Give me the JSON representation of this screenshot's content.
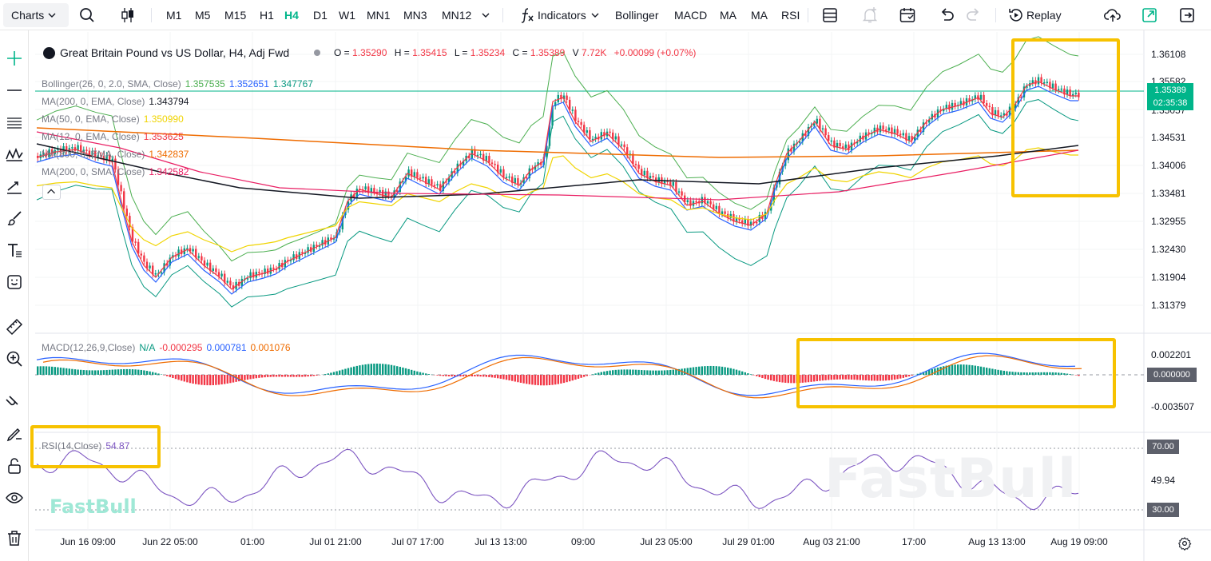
{
  "toolbar": {
    "charts_label": "Charts",
    "timeframes": [
      "M1",
      "M5",
      "M15",
      "H1",
      "H4",
      "D1",
      "W1",
      "MN1",
      "MN3",
      "MN12"
    ],
    "active_timeframe": "H4",
    "indicators_label": "Indicators",
    "studies": [
      "Bollinger",
      "MACD",
      "MA",
      "MA",
      "RSI"
    ],
    "replay_label": "Replay"
  },
  "symbol": {
    "title": "Great Britain Pound vs US Dollar, H4, Adj Fwd",
    "open_label": "O",
    "open": "1.35290",
    "high_label": "H",
    "high": "1.35415",
    "low_label": "L",
    "low": "1.35234",
    "close_label": "C",
    "close": "1.35389",
    "volume_label": "V",
    "volume": "7.72K",
    "change": "+0.00099 (+0.07%)"
  },
  "legend": {
    "bollinger": {
      "name": "Bollinger(26, 0, 2.0, SMA, Close)",
      "v1": "1.357535",
      "v2": "1.352651",
      "v3": "1.347767"
    },
    "ma200ema": {
      "name": "MA(200, 0, EMA, Close)",
      "v": "1.343794"
    },
    "ma50ema": {
      "name": "MA(50, 0, EMA, Close)",
      "v": "1.350990"
    },
    "ma12ema": {
      "name": "MA(12, 0, EMA, Close)",
      "v": "1.353625"
    },
    "ma800ema": {
      "name": "MA(800, 0, EMA, Close)",
      "v": "1.342837"
    },
    "ma200sma": {
      "name": "MA(200, 0, SMA, Close)",
      "v": "1.342582"
    },
    "macd": {
      "name": "MACD(12,26,9,Close)",
      "na": "N/A",
      "v1": "-0.000295",
      "v2": "0.000781",
      "v3": "0.001076"
    },
    "rsi": {
      "name": "RSI(14,Close)",
      "v": "54.87"
    }
  },
  "price_axis": {
    "labels": [
      "1.36108",
      "1.35582",
      "1.35057",
      "1.34531",
      "1.34006",
      "1.33481",
      "1.32955",
      "1.32430",
      "1.31904",
      "1.31379"
    ],
    "current_price": "1.35389",
    "countdown": "02:35:38"
  },
  "macd_axis": {
    "labels": [
      "0.002201",
      "0.000000",
      "-0.003507"
    ]
  },
  "rsi_axis": {
    "labels": [
      "70.00",
      "49.94",
      "30.00"
    ]
  },
  "time_axis": [
    "Jun 16 09:00",
    "Jun 22 05:00",
    "01:00",
    "Jul 01 21:00",
    "Jul 07 17:00",
    "Jul 13 13:00",
    "09:00",
    "Jul 23 05:00",
    "Jul 29 01:00",
    "Aug 03 21:00",
    "17:00",
    "Aug 13 13:00",
    "Aug 19 09:00"
  ],
  "watermark": "FastBull",
  "colors": {
    "up": "#089981",
    "down": "#f23645",
    "accent": "#00b58a",
    "highlight": "#f7c200"
  }
}
